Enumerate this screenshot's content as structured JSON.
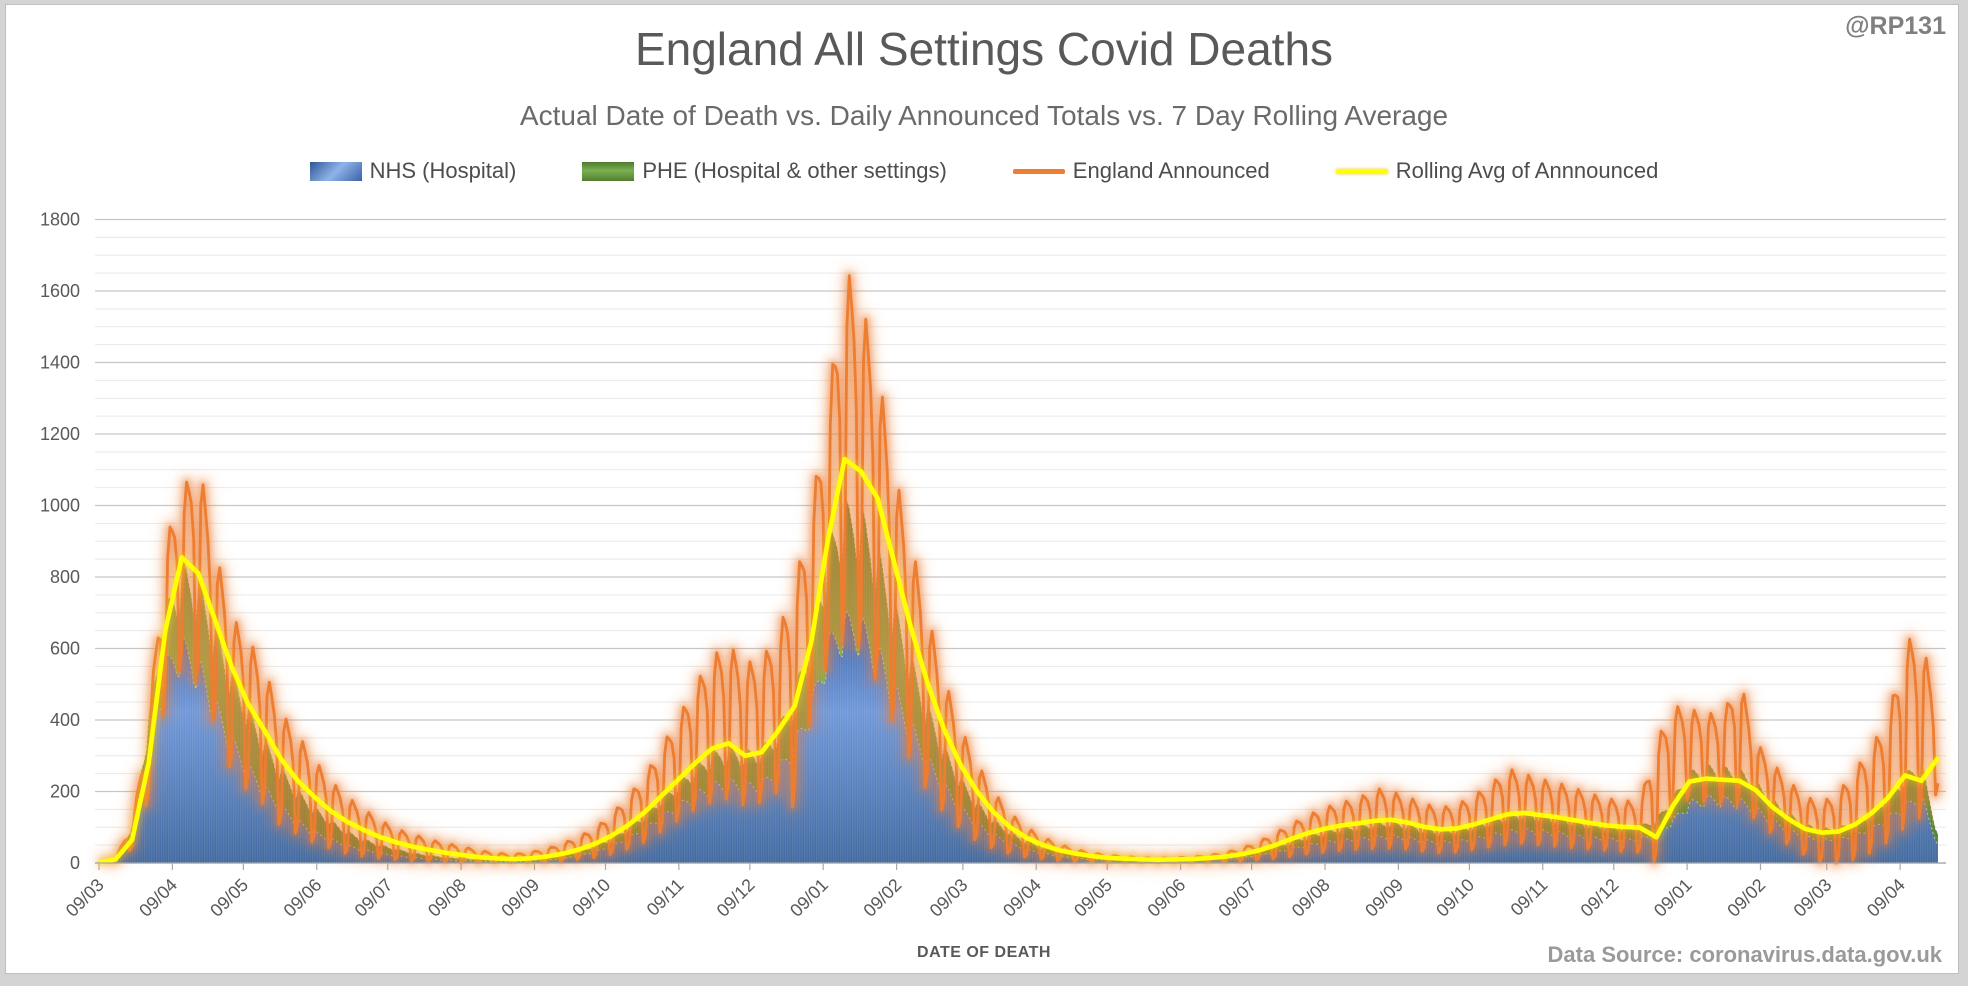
{
  "page": {
    "watermark": "@RP131",
    "source": "Data Source: coronavirus.data.gov.uk"
  },
  "chart_data": {
    "type": "area+line combo, daily covid deaths",
    "title": "England All Settings Covid Deaths",
    "subtitle": "Actual Date of Death vs. Daily Announced Totals vs. 7 Day Rolling Average",
    "xlabel": "DATE OF DEATH",
    "ylabel": "",
    "ylim": [
      0,
      1800
    ],
    "ytick_step": 200,
    "minor_gridline_step": 50,
    "grid": "on",
    "legend_position": "top",
    "x_start_date": "2020-03-09",
    "x_end_date": "2022-04-22",
    "x_tick_dates": "9th of each month",
    "x_tick_labels": [
      "09/03",
      "09/04",
      "09/05",
      "09/06",
      "09/07",
      "09/08",
      "09/09",
      "09/10",
      "09/11",
      "09/12",
      "09/01",
      "09/02",
      "09/03",
      "09/04",
      "09/05",
      "09/06",
      "09/07",
      "09/08",
      "09/09",
      "09/10",
      "09/11",
      "09/12",
      "09/01",
      "09/02",
      "09/03",
      "09/04"
    ],
    "sampling_note": "values estimated from chart at weekly resolution starting 2020-03-09; announced series given as weekday-peak (hi) and weekend-trough (lo) envelopes",
    "colors": {
      "nhs_area": "#4472C4",
      "phe_area": "#70AD47",
      "announced_line": "#ED7D31",
      "rolling_line": "#FFFF00",
      "gridline_major": "#c7c7c7",
      "gridline_minor": "#e9e9e9",
      "axis_text": "#595959"
    },
    "series": [
      {
        "name": "NHS (Hospital)",
        "type": "area",
        "color": "#4472C4",
        "values_weekly": [
          2,
          15,
          90,
          320,
          540,
          600,
          545,
          440,
          340,
          265,
          205,
          155,
          115,
          85,
          65,
          48,
          36,
          27,
          20,
          15,
          11,
          8,
          6,
          5,
          4,
          4,
          5,
          8,
          13,
          21,
          32,
          48,
          70,
          98,
          130,
          160,
          190,
          215,
          225,
          215,
          220,
          260,
          330,
          440,
          600,
          665,
          655,
          580,
          480,
          380,
          290,
          215,
          155,
          110,
          78,
          55,
          38,
          27,
          19,
          14,
          10,
          8,
          7,
          6,
          6,
          6,
          7,
          9,
          12,
          16,
          22,
          30,
          40,
          50,
          58,
          64,
          68,
          72,
          75,
          70,
          62,
          58,
          60,
          68,
          78,
          88,
          92,
          88,
          84,
          78,
          72,
          68,
          66,
          68,
          80,
          120,
          165,
          180,
          178,
          172,
          150,
          118,
          92,
          72,
          64,
          66,
          76,
          95,
          125,
          160,
          185,
          50
        ]
      },
      {
        "name": "PHE (Hospital & other settings)",
        "type": "area",
        "color": "#70AD47",
        "values_weekly": [
          3,
          18,
          105,
          400,
          680,
          800,
          760,
          640,
          520,
          420,
          330,
          255,
          195,
          150,
          115,
          85,
          65,
          50,
          38,
          28,
          21,
          16,
          12,
          9,
          8,
          8,
          9,
          13,
          20,
          32,
          48,
          70,
          100,
          138,
          180,
          220,
          260,
          295,
          310,
          300,
          310,
          365,
          470,
          630,
          860,
          960,
          945,
          840,
          700,
          555,
          425,
          315,
          230,
          165,
          118,
          84,
          60,
          43,
          31,
          23,
          17,
          13,
          11,
          10,
          9,
          10,
          11,
          14,
          18,
          24,
          33,
          45,
          60,
          75,
          87,
          96,
          102,
          108,
          112,
          105,
          94,
          88,
          92,
          103,
          118,
          132,
          138,
          132,
          126,
          118,
          108,
          102,
          99,
          102,
          120,
          180,
          245,
          262,
          258,
          250,
          220,
          172,
          135,
          106,
          94,
          98,
          112,
          140,
          185,
          240,
          275,
          80
        ]
      },
      {
        "name": "England Announced",
        "type": "line",
        "color": "#ED7D31",
        "weekly_hi": [
          3,
          15,
          110,
          390,
          900,
          1040,
          1130,
          880,
          690,
          630,
          540,
          420,
          360,
          290,
          230,
          185,
          150,
          120,
          95,
          80,
          65,
          55,
          45,
          35,
          28,
          25,
          30,
          40,
          55,
          75,
          100,
          140,
          190,
          250,
          330,
          410,
          500,
          580,
          610,
          560,
          570,
          650,
          780,
          1000,
          1285,
          1670,
          1575,
          1385,
          1100,
          900,
          700,
          520,
          380,
          280,
          200,
          140,
          100,
          72,
          52,
          38,
          28,
          22,
          18,
          15,
          14,
          15,
          17,
          22,
          30,
          42,
          60,
          85,
          110,
          135,
          155,
          170,
          180,
          210,
          200,
          185,
          165,
          155,
          165,
          190,
          220,
          265,
          250,
          235,
          225,
          210,
          195,
          180,
          175,
          170,
          340,
          440,
          430,
          420,
          415,
          525,
          340,
          280,
          230,
          185,
          170,
          200,
          260,
          330,
          405,
          625,
          630,
          430
        ],
        "weekly_lo": [
          1,
          5,
          40,
          180,
          450,
          550,
          500,
          380,
          250,
          200,
          160,
          100,
          80,
          55,
          40,
          25,
          18,
          12,
          8,
          5,
          4,
          2,
          2,
          1,
          1,
          1,
          2,
          3,
          5,
          10,
          15,
          25,
          40,
          60,
          90,
          120,
          150,
          170,
          180,
          160,
          170,
          200,
          150,
          420,
          560,
          620,
          600,
          500,
          380,
          280,
          200,
          140,
          95,
          60,
          40,
          25,
          15,
          10,
          6,
          4,
          3,
          2,
          2,
          1,
          1,
          1,
          2,
          2,
          3,
          5,
          8,
          12,
          18,
          25,
          30,
          35,
          38,
          40,
          42,
          38,
          32,
          28,
          30,
          38,
          45,
          52,
          55,
          50,
          46,
          42,
          38,
          35,
          32,
          30,
          0,
          150,
          180,
          170,
          165,
          160,
          120,
          80,
          50,
          20,
          0,
          0,
          10,
          30,
          60,
          100,
          130,
          200
        ]
      },
      {
        "name": "Rolling Avg of Annnounced",
        "type": "line",
        "color": "#FFFF00",
        "values_weekly": [
          2,
          10,
          65,
          280,
          650,
          855,
          810,
          680,
          550,
          445,
          370,
          290,
          230,
          185,
          145,
          115,
          92,
          72,
          57,
          45,
          36,
          28,
          22,
          16,
          13,
          11,
          13,
          18,
          26,
          38,
          55,
          78,
          108,
          145,
          190,
          235,
          280,
          320,
          335,
          300,
          310,
          370,
          440,
          620,
          905,
          1130,
          1095,
          1020,
          840,
          660,
          505,
          375,
          275,
          200,
          142,
          100,
          70,
          50,
          35,
          26,
          19,
          14,
          12,
          10,
          9,
          10,
          11,
          14,
          18,
          25,
          35,
          50,
          68,
          84,
          96,
          105,
          111,
          118,
          121,
          113,
          101,
          94,
          97,
          108,
          122,
          136,
          140,
          134,
          128,
          120,
          112,
          105,
          101,
          99,
          72,
          160,
          228,
          236,
          233,
          230,
          204,
          157,
          122,
          95,
          85,
          88,
          108,
          140,
          183,
          245,
          230,
          294
        ]
      }
    ]
  }
}
